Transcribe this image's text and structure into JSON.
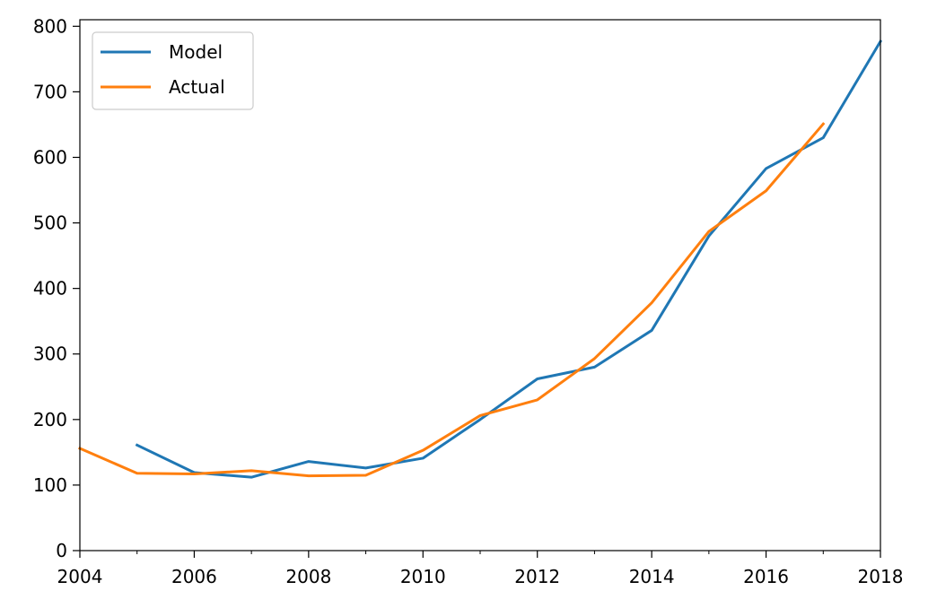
{
  "chart_data": {
    "type": "line",
    "title": "",
    "xlabel": "",
    "ylabel": "",
    "xlim": [
      2004,
      2018
    ],
    "ylim": [
      0,
      810
    ],
    "grid": false,
    "legend_position": "top-left",
    "x_ticks_major": [
      2004,
      2006,
      2008,
      2010,
      2012,
      2014,
      2016,
      2018
    ],
    "x_ticks_minor": [
      2005,
      2007,
      2009,
      2011,
      2013,
      2015,
      2017
    ],
    "x_tick_labels": [
      "2004",
      "2006",
      "2008",
      "2010",
      "2012",
      "2014",
      "2016",
      "2018"
    ],
    "y_ticks": [
      0,
      100,
      200,
      300,
      400,
      500,
      600,
      700,
      800
    ],
    "y_tick_labels": [
      "0",
      "100",
      "200",
      "300",
      "400",
      "500",
      "600",
      "700",
      "800"
    ],
    "series": [
      {
        "name": "Model",
        "color": "#1f77b4",
        "x": [
          2005,
          2006,
          2007,
          2008,
          2009,
          2010,
          2011,
          2012,
          2013,
          2014,
          2015,
          2016,
          2017,
          2018
        ],
        "y": [
          161,
          119,
          112,
          136,
          126,
          141,
          200,
          262,
          280,
          336,
          480,
          583,
          630,
          777
        ]
      },
      {
        "name": "Actual",
        "color": "#ff7f0e",
        "x": [
          2004,
          2005,
          2006,
          2007,
          2008,
          2009,
          2010,
          2011,
          2012,
          2013,
          2014,
          2015,
          2016,
          2017
        ],
        "y": [
          156,
          118,
          117,
          122,
          114,
          115,
          153,
          206,
          230,
          293,
          378,
          487,
          549,
          651
        ]
      }
    ]
  }
}
